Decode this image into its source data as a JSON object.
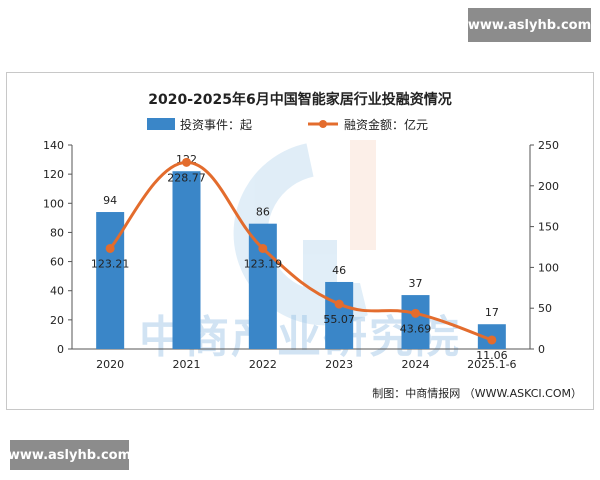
{
  "watermarks": {
    "top": "www.aslyhb.com",
    "bottom": "www.aslyhb.com"
  },
  "bg_watermark_text": "中商产业研究院",
  "colors": {
    "bar": "#3a86c8",
    "line": "#e36c2d",
    "axis": "#333333"
  },
  "chart_data": {
    "type": "bar+line",
    "title": "2020-2025年6月中国智能家居行业投融资情况",
    "categories": [
      "2020",
      "2021",
      "2022",
      "2023",
      "2024",
      "2025.1-6"
    ],
    "series": [
      {
        "name": "投资事件：起",
        "type": "bar",
        "axis": "left",
        "values": [
          94,
          122,
          86,
          46,
          37,
          17
        ]
      },
      {
        "name": "融资金额：亿元",
        "type": "line",
        "axis": "right",
        "values": [
          123.21,
          228.77,
          123.19,
          55.07,
          43.69,
          11.06
        ]
      }
    ],
    "left_axis": {
      "min": 0,
      "max": 140,
      "ticks": [
        0,
        20,
        40,
        60,
        80,
        100,
        120,
        140
      ]
    },
    "right_axis": {
      "min": 0,
      "max": 250,
      "ticks": [
        0,
        50,
        100,
        150,
        200,
        250
      ]
    },
    "bar_labels": [
      "94",
      "122",
      "86",
      "46",
      "37",
      "17"
    ],
    "line_labels": [
      "123.21",
      "228.77",
      "123.19",
      "55.07",
      "43.69",
      "11.06"
    ],
    "left_tick_labels": [
      "0",
      "20",
      "40",
      "60",
      "80",
      "100",
      "120",
      "140"
    ],
    "right_tick_labels": [
      "0",
      "50",
      "100",
      "150",
      "200",
      "250"
    ],
    "legend_position": "top-center",
    "grid": false
  },
  "source": "制图：中商情报网 （WWW.ASKCI.COM）"
}
